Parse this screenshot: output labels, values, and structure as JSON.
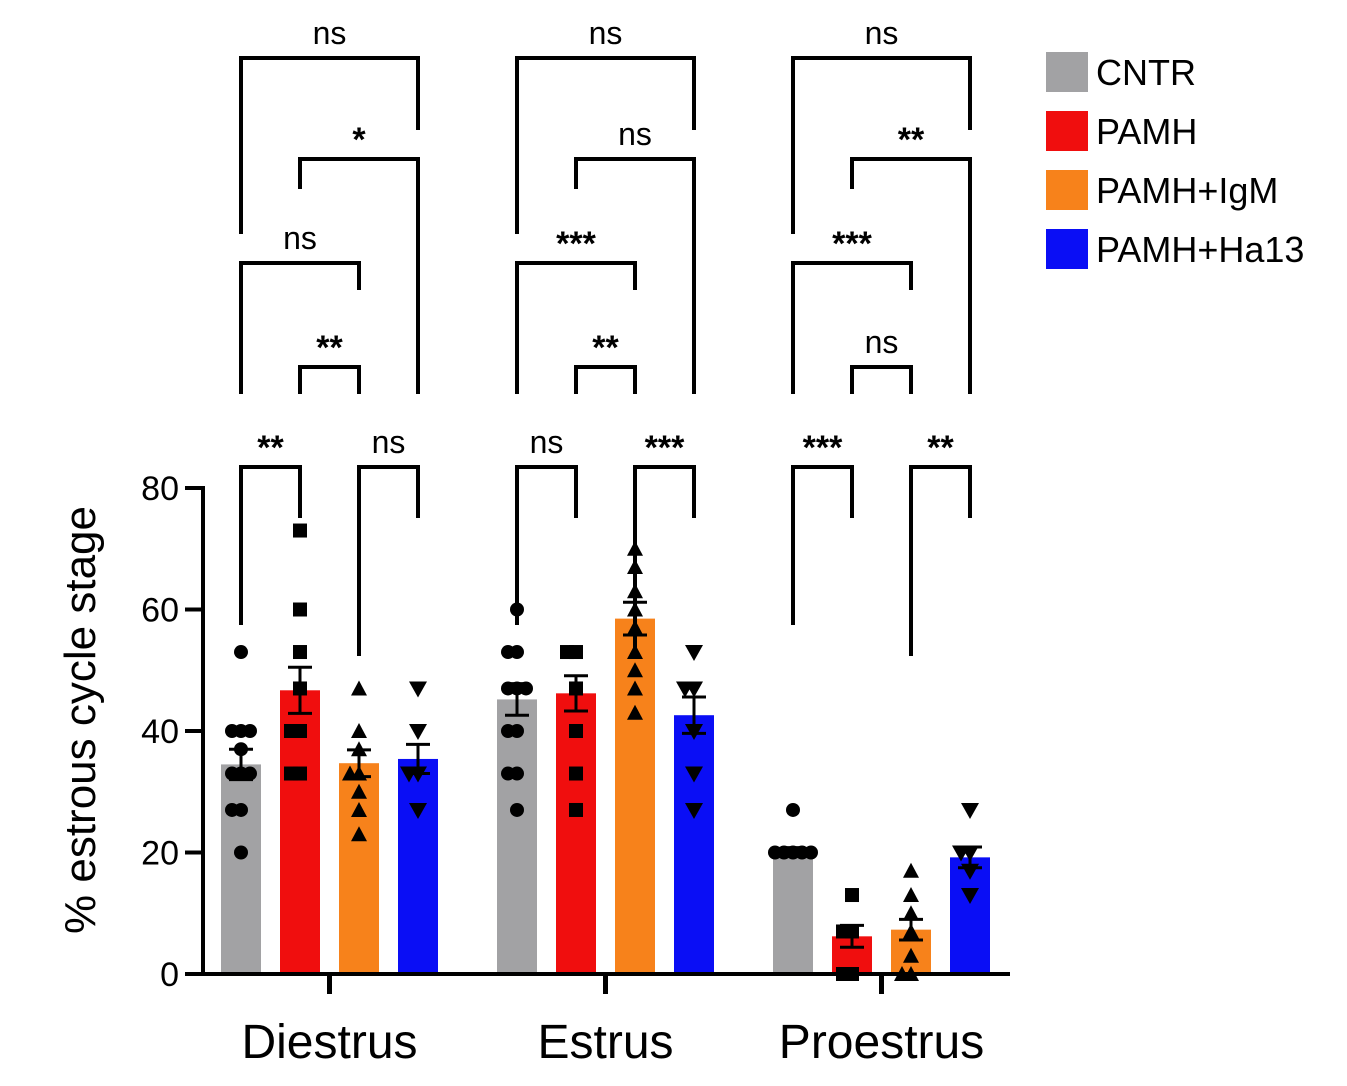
{
  "chart_data": {
    "type": "bar",
    "ylabel": "% estrous cycle stage",
    "xlabel": "",
    "ylim": [
      0,
      80
    ],
    "yticks": [
      0,
      20,
      40,
      60,
      80
    ],
    "categories": [
      "Diestrus",
      "Estrus",
      "Proestrus"
    ],
    "legend_position": "top-right",
    "series": [
      {
        "name": "CNTR",
        "color": "#a2a2a4",
        "marker": "circle",
        "values": [
          34.5,
          45.2,
          20.1
        ],
        "sem": [
          2.5,
          2.6,
          0.7
        ],
        "points": [
          [
            53,
            40,
            40,
            40,
            37,
            33,
            33,
            33,
            27,
            27,
            20
          ],
          [
            60,
            53,
            53,
            47,
            47,
            47,
            40,
            40,
            33,
            33,
            27
          ],
          [
            27,
            20,
            20,
            20,
            20,
            20
          ]
        ]
      },
      {
        "name": "PAMH",
        "color": "#f00e0e",
        "marker": "square",
        "values": [
          46.7,
          46.2,
          6.2
        ],
        "sem": [
          3.8,
          2.9,
          1.8
        ],
        "points": [
          [
            73,
            60,
            53,
            47,
            40,
            40,
            33,
            33
          ],
          [
            53,
            53,
            47,
            40,
            33,
            27
          ],
          [
            13,
            7,
            7,
            0,
            0
          ]
        ]
      },
      {
        "name": "PAMH+IgM",
        "color": "#f7821b",
        "marker": "triangle-up",
        "values": [
          34.7,
          58.5,
          7.3
        ],
        "sem": [
          2.2,
          2.7,
          1.7
        ],
        "points": [
          [
            47,
            40,
            37,
            33,
            33,
            30,
            27,
            23
          ],
          [
            70,
            67,
            63,
            60,
            57,
            53,
            50,
            47,
            43
          ],
          [
            17,
            13,
            10,
            7,
            3,
            0,
            0
          ]
        ]
      },
      {
        "name": "PAMH+Ha13",
        "color": "#0a0ef5",
        "marker": "triangle-down",
        "values": [
          35.4,
          42.6,
          19.2
        ],
        "sem": [
          2.4,
          3.0,
          1.7
        ],
        "points": [
          [
            47,
            40,
            33,
            33,
            27
          ],
          [
            53,
            47,
            47,
            40,
            33,
            27
          ],
          [
            27,
            20,
            20,
            17,
            13
          ]
        ]
      }
    ],
    "comparisons": [
      {
        "group": 0,
        "from": 0,
        "to": 1,
        "label": "**"
      },
      {
        "group": 0,
        "from": 2,
        "to": 3,
        "label": "ns"
      },
      {
        "group": 0,
        "from": 1,
        "to": 2,
        "label": "**"
      },
      {
        "group": 0,
        "from": 0,
        "to": 2,
        "label": "ns"
      },
      {
        "group": 0,
        "from": 1,
        "to": 3,
        "label": "*"
      },
      {
        "group": 0,
        "from": 0,
        "to": 3,
        "label": "ns"
      },
      {
        "group": 1,
        "from": 0,
        "to": 1,
        "label": "ns"
      },
      {
        "group": 1,
        "from": 2,
        "to": 3,
        "label": "***"
      },
      {
        "group": 1,
        "from": 1,
        "to": 2,
        "label": "**"
      },
      {
        "group": 1,
        "from": 0,
        "to": 2,
        "label": "***"
      },
      {
        "group": 1,
        "from": 1,
        "to": 3,
        "label": "ns"
      },
      {
        "group": 1,
        "from": 0,
        "to": 3,
        "label": "ns"
      },
      {
        "group": 2,
        "from": 0,
        "to": 1,
        "label": "***"
      },
      {
        "group": 2,
        "from": 2,
        "to": 3,
        "label": "**"
      },
      {
        "group": 2,
        "from": 1,
        "to": 2,
        "label": "ns"
      },
      {
        "group": 2,
        "from": 0,
        "to": 2,
        "label": "***"
      },
      {
        "group": 2,
        "from": 1,
        "to": 3,
        "label": "**"
      },
      {
        "group": 2,
        "from": 0,
        "to": 3,
        "label": "ns"
      }
    ]
  }
}
